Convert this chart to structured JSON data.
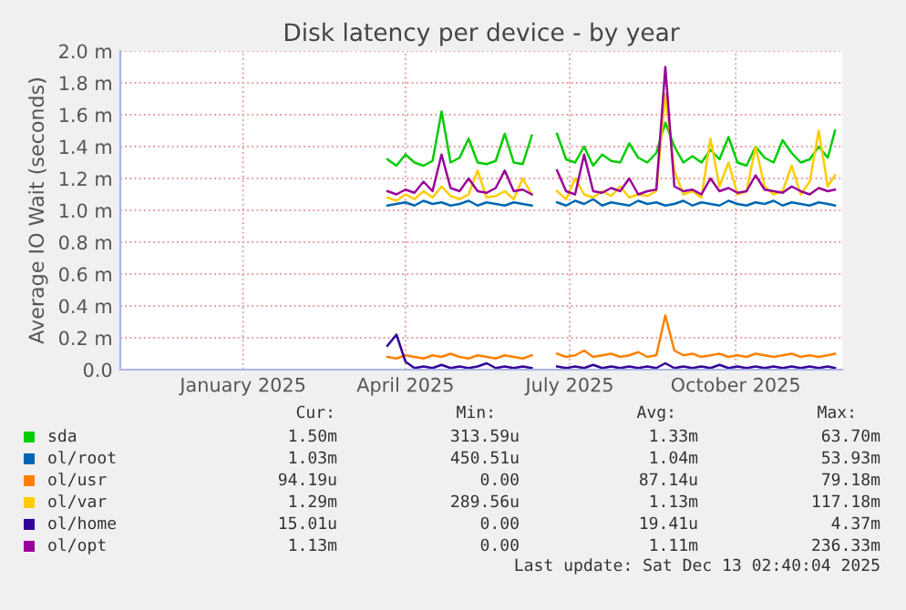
{
  "chart_data": {
    "type": "line",
    "title": "Disk latency per device - by year",
    "ylabel": "Average IO Wait (seconds)",
    "x": [
      "2025-04-05",
      "2025-04-10",
      "2025-04-15",
      "2025-04-20",
      "2025-04-25",
      "2025-04-30",
      "2025-05-05",
      "2025-05-10",
      "2025-05-15",
      "2025-05-20",
      "2025-05-25",
      "2025-05-30",
      "2025-06-04",
      "2025-06-09",
      "2025-06-14",
      "2025-06-19",
      "2025-06-24",
      "2025-07-01",
      "2025-07-08",
      "2025-07-13",
      "2025-07-18",
      "2025-07-23",
      "2025-07-28",
      "2025-08-02",
      "2025-08-07",
      "2025-08-12",
      "2025-08-17",
      "2025-08-22",
      "2025-08-27",
      "2025-09-01",
      "2025-09-06",
      "2025-09-11",
      "2025-09-16",
      "2025-09-21",
      "2025-09-26",
      "2025-10-01",
      "2025-10-06",
      "2025-10-11",
      "2025-10-16",
      "2025-10-21",
      "2025-10-26",
      "2025-10-31",
      "2025-11-05",
      "2025-11-10",
      "2025-11-15",
      "2025-11-20",
      "2025-11-25",
      "2025-11-30",
      "2025-12-05",
      "2025-12-09"
    ],
    "series": [
      {
        "name": "sda",
        "color": "#00cc00",
        "values": [
          1.32,
          1.28,
          1.35,
          1.3,
          1.28,
          1.31,
          1.62,
          1.3,
          1.33,
          1.45,
          1.3,
          1.29,
          1.31,
          1.48,
          1.3,
          1.29,
          1.47,
          null,
          1.48,
          1.32,
          1.3,
          1.4,
          1.28,
          1.35,
          1.31,
          1.3,
          1.42,
          1.33,
          1.3,
          1.36,
          1.55,
          1.4,
          1.3,
          1.34,
          1.3,
          1.38,
          1.32,
          1.46,
          1.3,
          1.28,
          1.4,
          1.33,
          1.3,
          1.44,
          1.36,
          1.3,
          1.32,
          1.4,
          1.33,
          1.5
        ]
      },
      {
        "name": "ol/root",
        "color": "#0066b3",
        "values": [
          1.03,
          1.04,
          1.05,
          1.03,
          1.06,
          1.04,
          1.05,
          1.03,
          1.04,
          1.06,
          1.03,
          1.05,
          1.04,
          1.03,
          1.05,
          1.04,
          1.03,
          null,
          1.05,
          1.03,
          1.06,
          1.04,
          1.07,
          1.03,
          1.05,
          1.04,
          1.03,
          1.06,
          1.04,
          1.05,
          1.03,
          1.04,
          1.06,
          1.03,
          1.05,
          1.04,
          1.03,
          1.06,
          1.04,
          1.03,
          1.05,
          1.04,
          1.06,
          1.03,
          1.05,
          1.04,
          1.03,
          1.05,
          1.04,
          1.03
        ]
      },
      {
        "name": "ol/usr",
        "color": "#ff8000",
        "values": [
          0.08,
          0.07,
          0.09,
          0.08,
          0.07,
          0.09,
          0.08,
          0.1,
          0.08,
          0.07,
          0.09,
          0.08,
          0.07,
          0.09,
          0.08,
          0.07,
          0.09,
          null,
          0.1,
          0.08,
          0.09,
          0.12,
          0.08,
          0.09,
          0.1,
          0.08,
          0.09,
          0.11,
          0.08,
          0.09,
          0.34,
          0.12,
          0.09,
          0.1,
          0.08,
          0.09,
          0.1,
          0.08,
          0.09,
          0.08,
          0.1,
          0.09,
          0.08,
          0.09,
          0.1,
          0.08,
          0.09,
          0.08,
          0.09,
          0.1
        ]
      },
      {
        "name": "ol/var",
        "color": "#ffcc00",
        "values": [
          1.08,
          1.06,
          1.1,
          1.07,
          1.12,
          1.08,
          1.15,
          1.09,
          1.07,
          1.1,
          1.25,
          1.08,
          1.09,
          1.12,
          1.07,
          1.2,
          1.1,
          null,
          1.12,
          1.07,
          1.2,
          1.1,
          1.08,
          1.12,
          1.09,
          1.15,
          1.08,
          1.1,
          1.09,
          1.12,
          1.73,
          1.25,
          1.1,
          1.12,
          1.08,
          1.45,
          1.15,
          1.3,
          1.1,
          1.12,
          1.4,
          1.15,
          1.1,
          1.12,
          1.28,
          1.1,
          1.18,
          1.5,
          1.15,
          1.22
        ]
      },
      {
        "name": "ol/home",
        "color": "#330099",
        "values": [
          0.15,
          0.22,
          0.05,
          0.01,
          0.02,
          0.01,
          0.03,
          0.01,
          0.02,
          0.01,
          0.02,
          0.04,
          0.01,
          0.02,
          0.01,
          0.02,
          0.01,
          null,
          0.02,
          0.01,
          0.02,
          0.01,
          0.03,
          0.01,
          0.02,
          0.01,
          0.02,
          0.01,
          0.02,
          0.01,
          0.04,
          0.01,
          0.02,
          0.01,
          0.02,
          0.01,
          0.03,
          0.01,
          0.02,
          0.01,
          0.02,
          0.01,
          0.02,
          0.01,
          0.02,
          0.01,
          0.02,
          0.01,
          0.02,
          0.01
        ]
      },
      {
        "name": "ol/opt",
        "color": "#990099",
        "values": [
          1.12,
          1.1,
          1.13,
          1.11,
          1.18,
          1.12,
          1.35,
          1.14,
          1.12,
          1.2,
          1.12,
          1.11,
          1.14,
          1.25,
          1.12,
          1.13,
          1.1,
          null,
          1.25,
          1.12,
          1.1,
          1.35,
          1.12,
          1.11,
          1.14,
          1.12,
          1.2,
          1.1,
          1.12,
          1.13,
          1.9,
          1.15,
          1.12,
          1.13,
          1.1,
          1.2,
          1.12,
          1.14,
          1.11,
          1.12,
          1.22,
          1.13,
          1.12,
          1.11,
          1.15,
          1.12,
          1.1,
          1.14,
          1.12,
          1.13
        ]
      }
    ],
    "xlim": [
      "2024-11-08",
      "2025-12-13"
    ],
    "xticks": [
      {
        "value": "2025-01-15",
        "label": "January 2025"
      },
      {
        "value": "2025-04-15",
        "label": "April 2025"
      },
      {
        "value": "2025-07-15",
        "label": "July 2025"
      },
      {
        "value": "2025-10-15",
        "label": "October 2025"
      }
    ],
    "ylim": [
      0,
      2.0
    ],
    "yticks": [
      {
        "value": 0,
        "label": "0.0"
      },
      {
        "value": 0.2,
        "label": "0.2 m"
      },
      {
        "value": 0.4,
        "label": "0.4 m"
      },
      {
        "value": 0.6,
        "label": "0.6 m"
      },
      {
        "value": 0.8,
        "label": "0.8 m"
      },
      {
        "value": 1.0,
        "label": "1.0 m"
      },
      {
        "value": 1.2,
        "label": "1.2 m"
      },
      {
        "value": 1.4,
        "label": "1.4 m"
      },
      {
        "value": 1.6,
        "label": "1.6 m"
      },
      {
        "value": 1.8,
        "label": "1.8 m"
      },
      {
        "value": 2.0,
        "label": "2.0 m"
      }
    ],
    "grid": true,
    "legend": "bottom",
    "marker": "none",
    "line_style": "solid",
    "annotations": [
      "Cur:",
      "Min:",
      "Avg:",
      "Max:",
      "1.50m",
      "313.59u",
      "1.33m",
      "63.70m",
      "1.03m",
      "450.51u",
      "1.04m",
      "53.93m",
      "94.19u",
      "0.00",
      "87.14u",
      "79.18m",
      "1.29m",
      "289.56u",
      "1.13m",
      "117.18m",
      "15.01u",
      "0.00",
      "19.41u",
      "4.37m",
      "1.13m",
      "0.00",
      "1.11m",
      "236.33m",
      "Last update: Sat Dec 13 02:40:04 2025"
    ]
  }
}
